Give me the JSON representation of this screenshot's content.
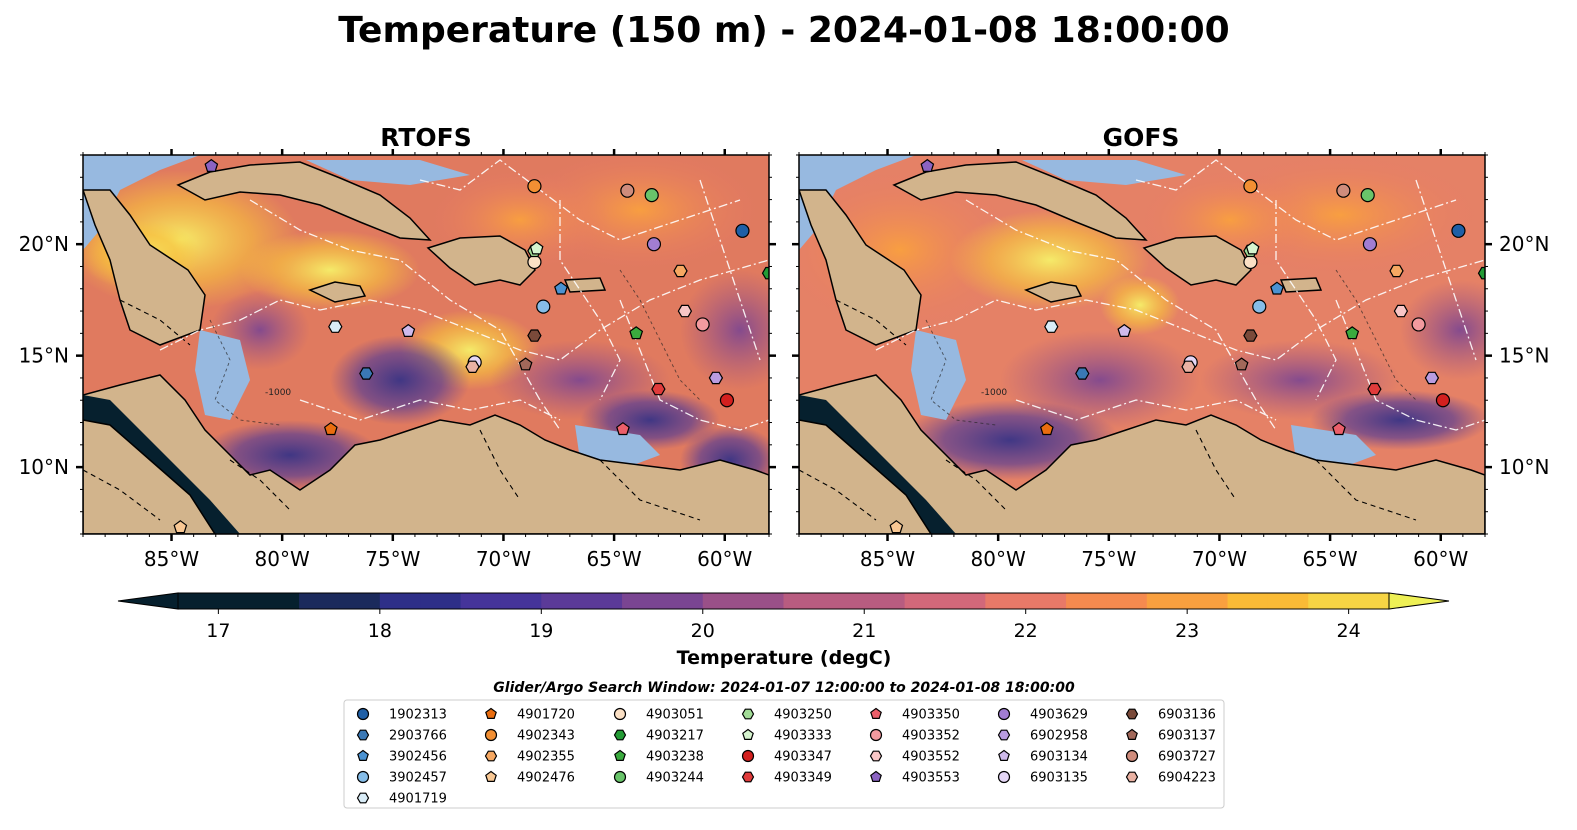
{
  "figure": {
    "title": "Temperature (150 m) - 2024-01-08 18:00:00"
  },
  "panels": [
    {
      "title": "RTOFS"
    },
    {
      "title": "GOFS"
    }
  ],
  "axes": {
    "lon_range": [
      -89,
      -58
    ],
    "lat_range": [
      7,
      24
    ],
    "lon_ticks": [
      {
        "value": -85,
        "label": "85°W"
      },
      {
        "value": -80,
        "label": "80°W"
      },
      {
        "value": -75,
        "label": "75°W"
      },
      {
        "value": -70,
        "label": "70°W"
      },
      {
        "value": -65,
        "label": "65°W"
      },
      {
        "value": -60,
        "label": "60°W"
      }
    ],
    "lat_ticks": [
      {
        "value": 10,
        "label": "10°N"
      },
      {
        "value": 15,
        "label": "15°N"
      },
      {
        "value": 20,
        "label": "20°N"
      }
    ],
    "contour_label": "-1000"
  },
  "colorbar": {
    "label": "Temperature (degC)",
    "min": 16.75,
    "max": 24.5,
    "step": 0.25,
    "tick_values": [
      17,
      18,
      19,
      20,
      21,
      22,
      23,
      24
    ],
    "colors": [
      "#06202e",
      "#1b2a5c",
      "#2e2f88",
      "#45349a",
      "#5b3a98",
      "#7a4592",
      "#9a5088",
      "#b85c80",
      "#d2687a",
      "#e87968",
      "#f58a4f",
      "#f9a03f",
      "#fabb36",
      "#f6d444",
      "#eef055"
    ],
    "extend": "both"
  },
  "legend": {
    "title": "Glider/Argo Search Window: 2024-01-07 12:00:00 to 2024-01-08 18:00:00",
    "columns": [
      [
        {
          "id": "1902313",
          "marker": "circle",
          "color": "#1f5fa6"
        },
        {
          "id": "2903766",
          "marker": "hexagon",
          "color": "#3a78b5"
        },
        {
          "id": "3902456",
          "marker": "pentagon",
          "color": "#4b92d1"
        },
        {
          "id": "3902457",
          "marker": "circle",
          "color": "#86bde8"
        },
        {
          "id": "4901719",
          "marker": "hexagon",
          "color": "#d9ecf7"
        }
      ],
      [
        {
          "id": "4901720",
          "marker": "pentagon",
          "color": "#ea6d0f"
        },
        {
          "id": "4902343",
          "marker": "circle",
          "color": "#f28f33"
        },
        {
          "id": "4902355",
          "marker": "hexagon",
          "color": "#f6a862"
        },
        {
          "id": "4902476",
          "marker": "pentagon",
          "color": "#f9c894"
        }
      ],
      [
        {
          "id": "4903051",
          "marker": "circle",
          "color": "#fbe0c5"
        },
        {
          "id": "4903217",
          "marker": "hexagon",
          "color": "#239b35"
        },
        {
          "id": "4903238",
          "marker": "pentagon",
          "color": "#3aaa3e"
        },
        {
          "id": "4903244",
          "marker": "circle",
          "color": "#69c46a"
        }
      ],
      [
        {
          "id": "4903250",
          "marker": "hexagon",
          "color": "#a2dc97"
        },
        {
          "id": "4903333",
          "marker": "pentagon",
          "color": "#d6f4cf"
        },
        {
          "id": "4903347",
          "marker": "circle",
          "color": "#d3201f"
        },
        {
          "id": "4903349",
          "marker": "hexagon",
          "color": "#e03b3b"
        }
      ],
      [
        {
          "id": "4903350",
          "marker": "pentagon",
          "color": "#ec5f6a"
        },
        {
          "id": "4903352",
          "marker": "circle",
          "color": "#f39a9f"
        },
        {
          "id": "4903552",
          "marker": "hexagon",
          "color": "#f8c6c6"
        },
        {
          "id": "4903553",
          "marker": "pentagon",
          "color": "#8b63c2"
        }
      ],
      [
        {
          "id": "4903629",
          "marker": "circle",
          "color": "#a17dd2"
        },
        {
          "id": "6902958",
          "marker": "hexagon",
          "color": "#b99ce0"
        },
        {
          "id": "6903134",
          "marker": "pentagon",
          "color": "#cfbaeb"
        },
        {
          "id": "6903135",
          "marker": "circle",
          "color": "#e5d7f6"
        }
      ],
      [
        {
          "id": "6903136",
          "marker": "hexagon",
          "color": "#7a4a3a"
        },
        {
          "id": "6903137",
          "marker": "pentagon",
          "color": "#a2685a"
        },
        {
          "id": "6903727",
          "marker": "circle",
          "color": "#cf8c7c"
        },
        {
          "id": "6904223",
          "marker": "hexagon",
          "color": "#eab2a3"
        }
      ]
    ]
  },
  "platforms": [
    {
      "id": "1902313",
      "lon": -59.2,
      "lat": 20.6
    },
    {
      "id": "2903766",
      "lon": -76.2,
      "lat": 14.2
    },
    {
      "id": "3902456",
      "lon": -67.4,
      "lat": 18.0
    },
    {
      "id": "3902457",
      "lon": -68.2,
      "lat": 17.2
    },
    {
      "id": "4901719",
      "lon": -77.6,
      "lat": 16.3
    },
    {
      "id": "4901720",
      "lon": -77.8,
      "lat": 11.7
    },
    {
      "id": "4902343",
      "lon": -68.6,
      "lat": 22.6
    },
    {
      "id": "4902355",
      "lon": -62.0,
      "lat": 18.8
    },
    {
      "id": "4902476",
      "lon": -84.6,
      "lat": 7.3
    },
    {
      "id": "4903051",
      "lon": -68.6,
      "lat": 19.2
    },
    {
      "id": "4903217",
      "lon": -58.0,
      "lat": 18.7
    },
    {
      "id": "4903238",
      "lon": -64.0,
      "lat": 16.0
    },
    {
      "id": "4903244",
      "lon": -63.3,
      "lat": 22.2
    },
    {
      "id": "4903250",
      "lon": -68.6,
      "lat": 19.7
    },
    {
      "id": "4903333",
      "lon": -68.5,
      "lat": 19.8
    },
    {
      "id": "4903347",
      "lon": -59.9,
      "lat": 13.0
    },
    {
      "id": "4903349",
      "lon": -63.0,
      "lat": 13.5
    },
    {
      "id": "4903350",
      "lon": -64.6,
      "lat": 11.7
    },
    {
      "id": "4903352",
      "lon": -61.0,
      "lat": 16.4
    },
    {
      "id": "4903552",
      "lon": -61.8,
      "lat": 17.0
    },
    {
      "id": "4903553",
      "lon": -83.2,
      "lat": 23.5
    },
    {
      "id": "4903629",
      "lon": -63.2,
      "lat": 20.0
    },
    {
      "id": "6902958",
      "lon": -60.4,
      "lat": 14.0
    },
    {
      "id": "6903134",
      "lon": -74.3,
      "lat": 16.1
    },
    {
      "id": "6903135",
      "lon": -71.3,
      "lat": 14.7
    },
    {
      "id": "6903136",
      "lon": -68.6,
      "lat": 15.9
    },
    {
      "id": "6903137",
      "lon": -69.0,
      "lat": 14.6
    },
    {
      "id": "6903727",
      "lon": -64.4,
      "lat": 22.4
    },
    {
      "id": "6904223",
      "lon": -71.4,
      "lat": 14.5
    }
  ]
}
